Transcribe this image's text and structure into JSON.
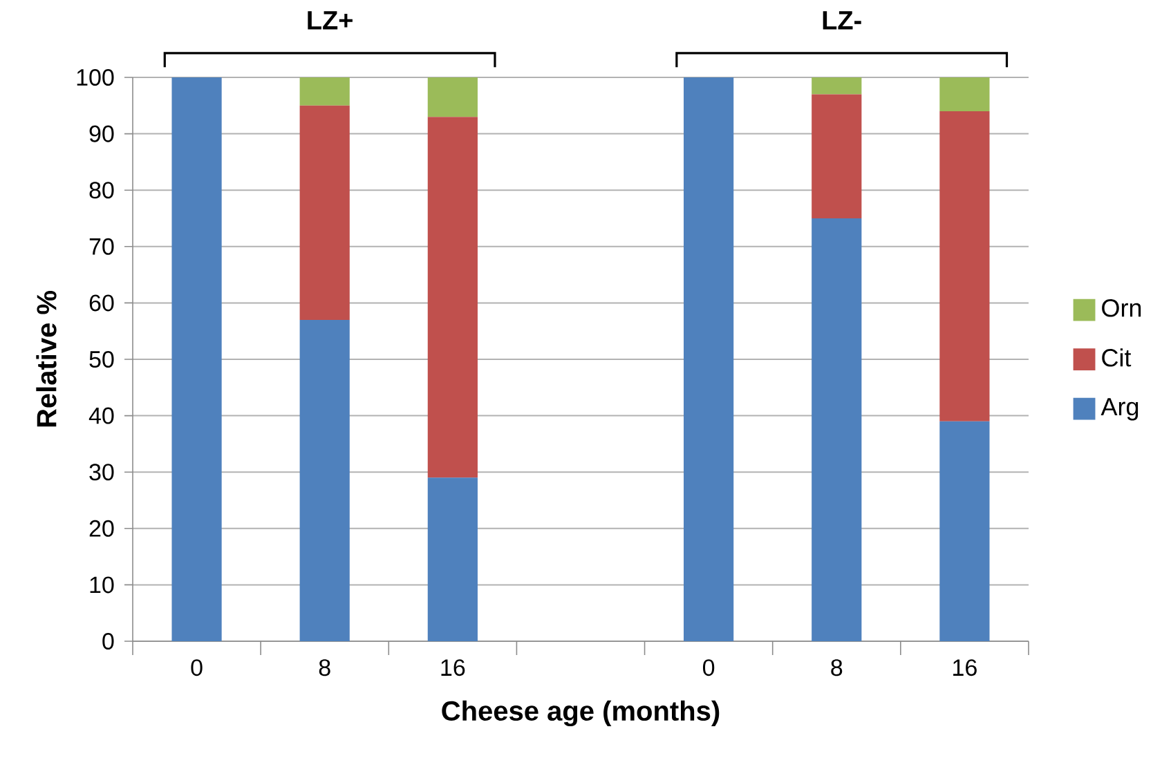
{
  "chart_data": {
    "type": "bar",
    "stacked": true,
    "xlabel": "Cheese age (months)",
    "ylabel": "Relative %",
    "categories": [
      "0",
      "8",
      "16",
      null,
      "0",
      "8",
      "16"
    ],
    "series": [
      {
        "name": "Arg",
        "color": "#4f81bd",
        "values": [
          100,
          57,
          29,
          null,
          100,
          75,
          39
        ]
      },
      {
        "name": "Cit",
        "color": "#c0504d",
        "values": [
          0,
          38,
          64,
          null,
          0,
          22,
          55
        ]
      },
      {
        "name": "Orn",
        "color": "#9bbb59",
        "values": [
          0,
          5,
          7,
          null,
          0,
          3,
          6
        ]
      }
    ],
    "annotations": [
      "LZ+",
      "LZ-"
    ],
    "ylim": [
      0,
      100
    ],
    "yticks": [
      0,
      10,
      20,
      30,
      40,
      50,
      60,
      70,
      80,
      90,
      100
    ],
    "grid": "y",
    "legend": "right"
  }
}
